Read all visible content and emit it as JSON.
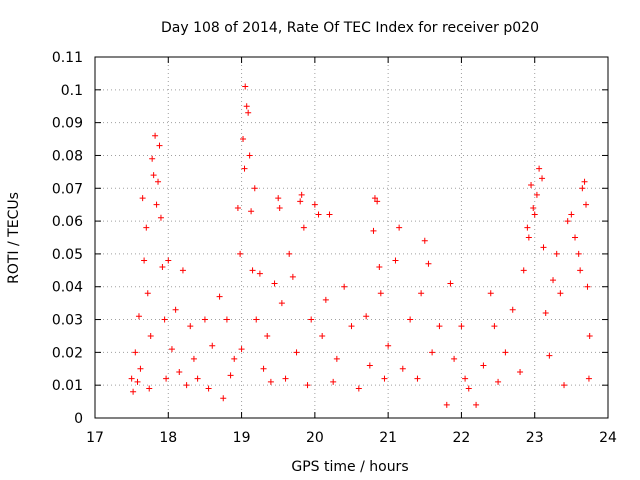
{
  "chart_data": {
    "type": "scatter",
    "title": "Day 108 of 2014, Rate Of TEC Index for receiver p020",
    "xlabel": "GPS time / hours",
    "ylabel": "ROTI / TECUs",
    "xlim": [
      17,
      24
    ],
    "ylim": [
      0,
      0.11
    ],
    "x_ticks": [
      "17",
      "18",
      "19",
      "20",
      "21",
      "22",
      "23",
      "24"
    ],
    "y_ticks": [
      "0",
      "0.01",
      "0.02",
      "0.03",
      "0.04",
      "0.05",
      "0.06",
      "0.07",
      "0.08",
      "0.09",
      "0.1",
      "0.11"
    ],
    "grid": true,
    "marker": "+",
    "series": [
      {
        "name": "ROTI",
        "color": "#ff0000",
        "points": [
          [
            17.5,
            0.012
          ],
          [
            17.52,
            0.008
          ],
          [
            17.55,
            0.02
          ],
          [
            17.58,
            0.011
          ],
          [
            17.6,
            0.031
          ],
          [
            17.62,
            0.015
          ],
          [
            17.65,
            0.067
          ],
          [
            17.67,
            0.048
          ],
          [
            17.7,
            0.058
          ],
          [
            17.72,
            0.038
          ],
          [
            17.74,
            0.009
          ],
          [
            17.76,
            0.025
          ],
          [
            17.78,
            0.079
          ],
          [
            17.8,
            0.074
          ],
          [
            17.82,
            0.086
          ],
          [
            17.84,
            0.065
          ],
          [
            17.86,
            0.072
          ],
          [
            17.88,
            0.083
          ],
          [
            17.9,
            0.061
          ],
          [
            17.92,
            0.046
          ],
          [
            17.95,
            0.03
          ],
          [
            17.97,
            0.012
          ],
          [
            18.0,
            0.048
          ],
          [
            18.05,
            0.021
          ],
          [
            18.1,
            0.033
          ],
          [
            18.15,
            0.014
          ],
          [
            18.2,
            0.045
          ],
          [
            18.25,
            0.01
          ],
          [
            18.3,
            0.028
          ],
          [
            18.35,
            0.018
          ],
          [
            18.4,
            0.012
          ],
          [
            18.5,
            0.03
          ],
          [
            18.55,
            0.009
          ],
          [
            18.6,
            0.022
          ],
          [
            18.7,
            0.037
          ],
          [
            18.75,
            0.006
          ],
          [
            18.8,
            0.03
          ],
          [
            18.85,
            0.013
          ],
          [
            18.9,
            0.018
          ],
          [
            18.95,
            0.064
          ],
          [
            18.98,
            0.05
          ],
          [
            19.0,
            0.021
          ],
          [
            19.02,
            0.085
          ],
          [
            19.04,
            0.076
          ],
          [
            19.05,
            0.101
          ],
          [
            19.07,
            0.095
          ],
          [
            19.09,
            0.093
          ],
          [
            19.11,
            0.08
          ],
          [
            19.13,
            0.063
          ],
          [
            19.15,
            0.045
          ],
          [
            19.18,
            0.07
          ],
          [
            19.2,
            0.03
          ],
          [
            19.25,
            0.044
          ],
          [
            19.3,
            0.015
          ],
          [
            19.35,
            0.025
          ],
          [
            19.4,
            0.011
          ],
          [
            19.45,
            0.041
          ],
          [
            19.5,
            0.067
          ],
          [
            19.52,
            0.064
          ],
          [
            19.55,
            0.035
          ],
          [
            19.6,
            0.012
          ],
          [
            19.65,
            0.05
          ],
          [
            19.7,
            0.043
          ],
          [
            19.75,
            0.02
          ],
          [
            19.8,
            0.066
          ],
          [
            19.82,
            0.068
          ],
          [
            19.85,
            0.058
          ],
          [
            19.9,
            0.01
          ],
          [
            19.95,
            0.03
          ],
          [
            20.0,
            0.065
          ],
          [
            20.05,
            0.062
          ],
          [
            20.1,
            0.025
          ],
          [
            20.15,
            0.036
          ],
          [
            20.2,
            0.062
          ],
          [
            20.25,
            0.011
          ],
          [
            20.3,
            0.018
          ],
          [
            20.4,
            0.04
          ],
          [
            20.5,
            0.028
          ],
          [
            20.6,
            0.009
          ],
          [
            20.7,
            0.031
          ],
          [
            20.75,
            0.016
          ],
          [
            20.8,
            0.057
          ],
          [
            20.82,
            0.067
          ],
          [
            20.85,
            0.066
          ],
          [
            20.88,
            0.046
          ],
          [
            20.9,
            0.038
          ],
          [
            20.95,
            0.012
          ],
          [
            21.0,
            0.022
          ],
          [
            21.1,
            0.048
          ],
          [
            21.15,
            0.058
          ],
          [
            21.2,
            0.015
          ],
          [
            21.3,
            0.03
          ],
          [
            21.4,
            0.012
          ],
          [
            21.45,
            0.038
          ],
          [
            21.5,
            0.054
          ],
          [
            21.55,
            0.047
          ],
          [
            21.6,
            0.02
          ],
          [
            21.7,
            0.028
          ],
          [
            21.8,
            0.004
          ],
          [
            21.85,
            0.041
          ],
          [
            21.9,
            0.018
          ],
          [
            22.0,
            0.028
          ],
          [
            22.05,
            0.012
          ],
          [
            22.1,
            0.009
          ],
          [
            22.2,
            0.004
          ],
          [
            22.3,
            0.016
          ],
          [
            22.4,
            0.038
          ],
          [
            22.45,
            0.028
          ],
          [
            22.5,
            0.011
          ],
          [
            22.6,
            0.02
          ],
          [
            22.7,
            0.033
          ],
          [
            22.8,
            0.014
          ],
          [
            22.85,
            0.045
          ],
          [
            22.9,
            0.058
          ],
          [
            22.92,
            0.055
          ],
          [
            22.95,
            0.071
          ],
          [
            22.98,
            0.064
          ],
          [
            23.0,
            0.062
          ],
          [
            23.03,
            0.068
          ],
          [
            23.06,
            0.076
          ],
          [
            23.1,
            0.073
          ],
          [
            23.12,
            0.052
          ],
          [
            23.15,
            0.032
          ],
          [
            23.2,
            0.019
          ],
          [
            23.25,
            0.042
          ],
          [
            23.3,
            0.05
          ],
          [
            23.35,
            0.038
          ],
          [
            23.4,
            0.01
          ],
          [
            23.45,
            0.06
          ],
          [
            23.5,
            0.062
          ],
          [
            23.55,
            0.055
          ],
          [
            23.6,
            0.05
          ],
          [
            23.62,
            0.045
          ],
          [
            23.65,
            0.07
          ],
          [
            23.68,
            0.072
          ],
          [
            23.7,
            0.065
          ],
          [
            23.72,
            0.04
          ],
          [
            23.74,
            0.012
          ],
          [
            23.75,
            0.025
          ]
        ]
      }
    ]
  }
}
